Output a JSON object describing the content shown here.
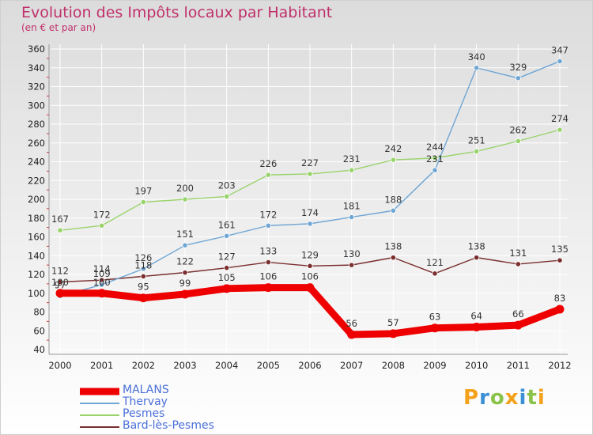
{
  "title": "Evolution des Impôts locaux par Habitant",
  "subtitle": "(en € et par an)",
  "logo": {
    "letters": [
      "P",
      "r",
      "o",
      "x",
      "i",
      "t",
      "i"
    ],
    "colors": [
      "#f4a11b",
      "#3a8fd6",
      "#8bc34a",
      "#f4a11b",
      "#3a8fd6",
      "#8bc34a",
      "#f4a11b"
    ]
  },
  "chart_data": {
    "type": "line",
    "title": "Evolution des Impôts locaux par Habitant",
    "subtitle": "(en € et par an)",
    "xlabel": "",
    "ylabel": "",
    "x": [
      "2000",
      "2001",
      "2002",
      "2003",
      "2004",
      "2005",
      "2006",
      "2007",
      "2008",
      "2009",
      "2010",
      "2011",
      "2012"
    ],
    "ylim": [
      40,
      360
    ],
    "yticks": [
      40,
      60,
      80,
      100,
      120,
      140,
      160,
      180,
      200,
      220,
      240,
      260,
      280,
      300,
      320,
      340,
      360
    ],
    "grid": true,
    "legend_position": "bottom-left",
    "series": [
      {
        "name": "MALANS",
        "values": [
          100,
          100,
          95,
          99,
          105,
          106,
          106,
          56,
          57,
          63,
          64,
          66,
          83
        ],
        "labels": [
          "100",
          "100",
          "95",
          "99",
          "105",
          "106",
          "106",
          "56",
          "57",
          "63",
          "64",
          "66",
          "83"
        ],
        "color": "#ee0000",
        "bold": true
      },
      {
        "name": "Thervay",
        "values": [
          97,
          109,
          126,
          151,
          161,
          172,
          174,
          181,
          188,
          231,
          340,
          329,
          347
        ],
        "labels": [
          "97",
          "109",
          "126",
          "151",
          "161",
          "172",
          "174",
          "181",
          "188",
          "231",
          "340",
          "329",
          "347"
        ],
        "color": "#6fa6d4",
        "bold": false
      },
      {
        "name": "Pesmes",
        "values": [
          167,
          172,
          197,
          200,
          203,
          226,
          227,
          231,
          242,
          244,
          251,
          262,
          274
        ],
        "labels": [
          "167",
          "172",
          "197",
          "200",
          "203",
          "226",
          "227",
          "231",
          "242",
          "244",
          "251",
          "262",
          "274"
        ],
        "color": "#99d36b",
        "bold": false
      },
      {
        "name": "Bard-lès-Pesmes",
        "values": [
          112,
          114,
          118,
          122,
          127,
          133,
          129,
          130,
          138,
          121,
          138,
          131,
          135
        ],
        "labels": [
          "112",
          "114",
          "118",
          "122",
          "127",
          "133",
          "129",
          "130",
          "138",
          "121",
          "138",
          "131",
          "135"
        ],
        "color": "#7a2e2e",
        "bold": false
      }
    ]
  }
}
